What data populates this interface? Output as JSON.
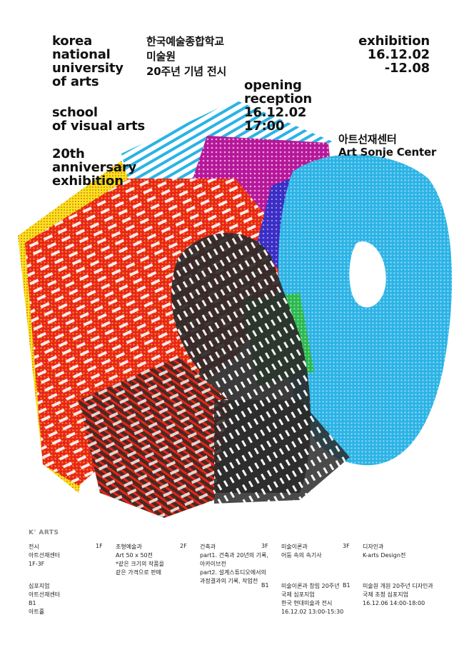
{
  "title_en": "korea\nnational\nuniversity\nof arts",
  "school": "school\nof visual arts",
  "anniv_en": "20th\nanniversary\nexhibition",
  "title_ko": "한국예술종합학교\n미술원\n20주년 기념 전시",
  "opening": "opening\nreception\n16.12.02\n17:00",
  "exhibition": "exhibition\n16.12.02\n-12.08",
  "venue_ko": "아트선재센터",
  "venue_en": "Art Sonje Center",
  "logo": "K' ARTS",
  "colors": {
    "red": "#e8241c",
    "cyan": "#1fb3e3",
    "magenta": "#b4189a",
    "yellow": "#f4e61c",
    "green": "#2bb84a",
    "blue": "#3a2ec4",
    "dark": "#2a2a2a",
    "orange": "#f05a1a"
  },
  "footer": {
    "exhibit_label": "전시\n아트선재센터\n1F-3F",
    "f1": "1F",
    "f1_text": "조형예술과\nArt 50 x 50전\n*같은 크기의 작품을\n같은 가격으로 판매",
    "f2": "2F",
    "f2_text": "건축과\npart1. 건축과 20년의 기록,\n아카이브전\npart2. 설계스튜디오에서의\n과정결과의 기록, 작업전",
    "f3a": "3F",
    "f3a_text": "미술이론과\n어둠 속의 속기사",
    "f3b": "3F",
    "f3b_text": "디자인과\nK-arts Design전",
    "symp_label": "심포지엄\n아트선재센터\nB1\n아트홀",
    "b1a": "B1",
    "b1a_text": "미술이론과 창립 20주년\n국제 심포지엄\n한국 현대미술과 전시\n16.12.02  13:00-15:30",
    "b1b": "B1",
    "b1b_text": "미술원 개원 20주년 디자인과\n국제 초청 심포지엄\n16.12.06  14:00-18:00"
  }
}
